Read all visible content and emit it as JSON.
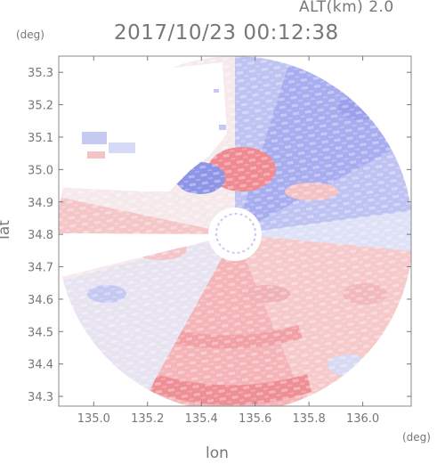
{
  "altitude_label": "ALT(km) 2.0",
  "timestamp": "2017/10/23 00:12:38",
  "y_unit": "(deg)",
  "x_unit": "(deg)",
  "y_axis_label": "lat",
  "x_axis_label": "lon",
  "chart_data": {
    "type": "heatmap",
    "title": "2017/10/23 00:12:38",
    "subtitle": "ALT(km) 2.0",
    "xlabel": "lon",
    "ylabel": "lat",
    "xlim": [
      134.87,
      136.18
    ],
    "ylim": [
      34.27,
      35.35
    ],
    "x_ticks": [
      "135.0",
      "135.2",
      "135.4",
      "135.6",
      "135.8",
      "136.0"
    ],
    "x_tick_values": [
      135.0,
      135.2,
      135.4,
      135.6,
      135.8,
      136.0
    ],
    "y_ticks": [
      "34.3",
      "34.4",
      "34.5",
      "34.6",
      "34.7",
      "34.8",
      "34.9",
      "35.0",
      "35.1",
      "35.2",
      "35.3"
    ],
    "y_tick_values": [
      34.3,
      34.4,
      34.5,
      34.6,
      34.7,
      34.8,
      34.9,
      35.0,
      35.1,
      35.2,
      35.3
    ],
    "radar_center": {
      "lon": 135.52,
      "lat": 34.82
    },
    "colors": {
      "positive": "#f08080",
      "negative": "#7070e0",
      "neutral": "#f0f0f8",
      "axis": "#777777"
    }
  }
}
